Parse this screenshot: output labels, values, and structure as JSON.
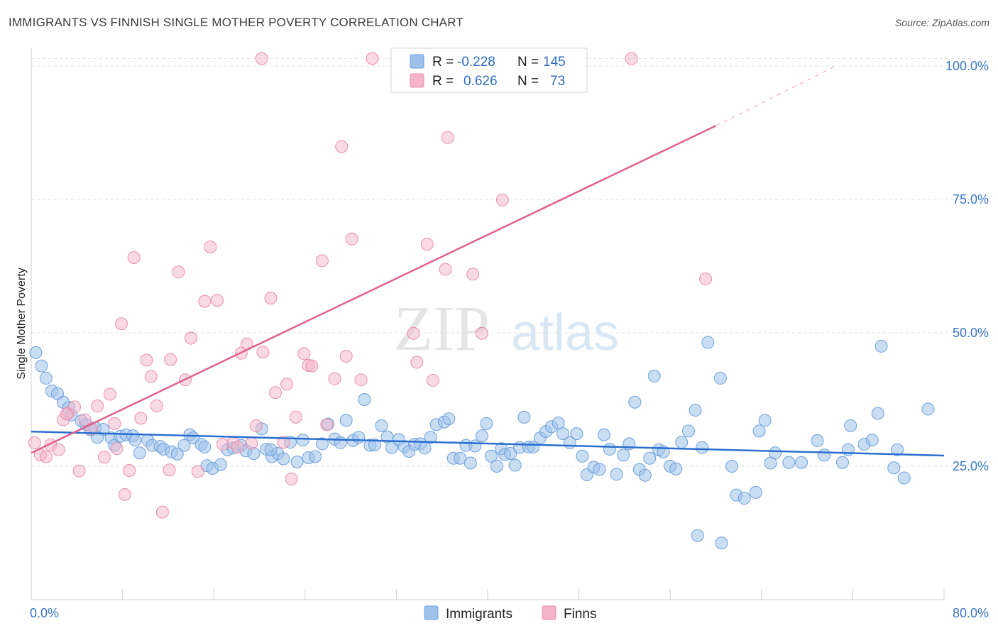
{
  "header": {
    "title": "IMMIGRANTS VS FINNISH SINGLE MOTHER POVERTY CORRELATION CHART",
    "source": "Source: ZipAtlas.com"
  },
  "watermark": {
    "zip": "ZIP",
    "atlas": "atlas"
  },
  "legend_top": {
    "rows": [
      {
        "r_label": "R =",
        "r_value": "-0.228",
        "n_label": "N =",
        "n_value": "145",
        "color": "#9dc1ea"
      },
      {
        "r_label": "R =",
        "r_value": "0.626",
        "n_label": "N =",
        "n_value": "73",
        "color": "#f3b3c8"
      }
    ]
  },
  "legend_bottom": [
    {
      "label": "Immigrants",
      "color": "#9dc1ea"
    },
    {
      "label": "Finns",
      "color": "#f3b3c8"
    }
  ],
  "chart_data": {
    "type": "scatter",
    "title": "IMMIGRANTS VS FINNISH SINGLE MOTHER POVERTY CORRELATION CHART",
    "xlabel": "",
    "ylabel": "Single Mother Poverty",
    "xlim": [
      0,
      80
    ],
    "ylim": [
      0,
      102
    ],
    "x_tick_labels": [
      {
        "value": 0,
        "label": "0.0%"
      },
      {
        "value": 80,
        "label": "80.0%"
      }
    ],
    "y_tick_labels": [
      {
        "value": 25,
        "label": "25.0%"
      },
      {
        "value": 50,
        "label": "50.0%"
      },
      {
        "value": 75,
        "label": "75.0%"
      },
      {
        "value": 100,
        "label": "100.0%"
      }
    ],
    "grid": true,
    "colors": {
      "immigrants": "#9dc1ea",
      "immigrants_edge": "#6fa0dc",
      "immigrants_line": "#2a6fd0",
      "finns": "#f3b3c8",
      "finns_edge": "#e88fae",
      "finns_line": "#e0608e"
    },
    "series": [
      {
        "name": "Immigrants",
        "trend": {
          "x": [
            0,
            80
          ],
          "y": [
            31.5,
            27
          ]
        },
        "points": [
          [
            0.4,
            46.3
          ],
          [
            0.9,
            43.8
          ],
          [
            1.3,
            41.5
          ],
          [
            1.8,
            39.1
          ],
          [
            2.3,
            38.6
          ],
          [
            2.8,
            37
          ],
          [
            3.3,
            36
          ],
          [
            3.5,
            34.6
          ],
          [
            4.4,
            33.5
          ],
          [
            4.8,
            32.8
          ],
          [
            5.2,
            31.8
          ],
          [
            5.6,
            32.2
          ],
          [
            6.3,
            31.9
          ],
          [
            7.0,
            30.3
          ],
          [
            7.3,
            28.9
          ],
          [
            7.8,
            30.6
          ],
          [
            8.3,
            30.9
          ],
          [
            8.9,
            30.7
          ],
          [
            9.5,
            27.5
          ],
          [
            10.2,
            29.9
          ],
          [
            10.6,
            28.9
          ],
          [
            11.3,
            28.7
          ],
          [
            11.6,
            28.2
          ],
          [
            12.3,
            27.7
          ],
          [
            12.8,
            27.3
          ],
          [
            13.4,
            28.9
          ],
          [
            13.9,
            30.9
          ],
          [
            14.2,
            30.3
          ],
          [
            14.9,
            29.1
          ],
          [
            15.4,
            25.1
          ],
          [
            15.9,
            24.6
          ],
          [
            16.6,
            25.3
          ],
          [
            17.2,
            28.1
          ],
          [
            17.7,
            28.4
          ],
          [
            18.4,
            28.9
          ],
          [
            18.8,
            27.9
          ],
          [
            19.5,
            27.4
          ],
          [
            20.2,
            32.0
          ],
          [
            20.6,
            28.2
          ],
          [
            21.1,
            26.8
          ],
          [
            21.6,
            27.4
          ],
          [
            22.1,
            26.4
          ],
          [
            22.7,
            29.5
          ],
          [
            23.3,
            25.8
          ],
          [
            23.8,
            29.9
          ],
          [
            24.3,
            26.6
          ],
          [
            24.9,
            26.8
          ],
          [
            25.5,
            29.2
          ],
          [
            26.0,
            32.9
          ],
          [
            26.6,
            30.1
          ],
          [
            27.1,
            29.4
          ],
          [
            27.6,
            33.6
          ],
          [
            28.2,
            29.8
          ],
          [
            28.7,
            30.4
          ],
          [
            29.2,
            37.5
          ],
          [
            29.7,
            28.9
          ],
          [
            30.1,
            29.0
          ],
          [
            30.7,
            32.6
          ],
          [
            31.2,
            30.5
          ],
          [
            31.6,
            28.5
          ],
          [
            32.2,
            30.0
          ],
          [
            32.7,
            28.7
          ],
          [
            33.1,
            27.8
          ],
          [
            33.6,
            29.1
          ],
          [
            34.1,
            29.2
          ],
          [
            34.5,
            28.4
          ],
          [
            35.0,
            30.4
          ],
          [
            35.5,
            32.8
          ],
          [
            36.2,
            33.3
          ],
          [
            36.6,
            33.9
          ],
          [
            37.0,
            26.5
          ],
          [
            37.6,
            26.5
          ],
          [
            38.1,
            28.9
          ],
          [
            38.5,
            25.6
          ],
          [
            38.9,
            28.8
          ],
          [
            39.5,
            30.7
          ],
          [
            39.9,
            33.0
          ],
          [
            40.3,
            26.9
          ],
          [
            40.8,
            25.0
          ],
          [
            41.2,
            28.3
          ],
          [
            41.5,
            27.2
          ],
          [
            42.0,
            27.4
          ],
          [
            42.4,
            25.2
          ],
          [
            42.8,
            28.5
          ],
          [
            43.2,
            34.2
          ],
          [
            43.6,
            28.6
          ],
          [
            44.0,
            28.6
          ],
          [
            44.6,
            30.3
          ],
          [
            45.1,
            31.5
          ],
          [
            45.6,
            32.4
          ],
          [
            46.2,
            33.1
          ],
          [
            46.6,
            31.1
          ],
          [
            47.2,
            29.4
          ],
          [
            47.8,
            31.1
          ],
          [
            48.3,
            26.9
          ],
          [
            48.7,
            23.4
          ],
          [
            49.3,
            24.8
          ],
          [
            49.8,
            24.4
          ],
          [
            50.2,
            30.9
          ],
          [
            50.7,
            28.2
          ],
          [
            51.3,
            23.5
          ],
          [
            51.9,
            27.1
          ],
          [
            52.4,
            29.2
          ],
          [
            52.9,
            37.0
          ],
          [
            53.3,
            24.4
          ],
          [
            53.8,
            23.3
          ],
          [
            54.2,
            26.5
          ],
          [
            54.6,
            41.9
          ],
          [
            55.0,
            28.1
          ],
          [
            55.4,
            27.7
          ],
          [
            56.0,
            25.0
          ],
          [
            56.5,
            24.5
          ],
          [
            57.0,
            29.5
          ],
          [
            57.6,
            31.6
          ],
          [
            58.2,
            35.5
          ],
          [
            58.8,
            28.5
          ],
          [
            59.3,
            48.2
          ],
          [
            60.4,
            41.5
          ],
          [
            61.4,
            25.0
          ],
          [
            61.8,
            19.6
          ],
          [
            62.5,
            19.0
          ],
          [
            63.5,
            20.1
          ],
          [
            63.8,
            31.6
          ],
          [
            64.3,
            33.6
          ],
          [
            64.8,
            25.6
          ],
          [
            65.2,
            27.5
          ],
          [
            66.4,
            25.7
          ],
          [
            67.5,
            25.7
          ],
          [
            68.9,
            29.8
          ],
          [
            69.5,
            27.1
          ],
          [
            71.1,
            25.7
          ],
          [
            71.6,
            28.1
          ],
          [
            71.8,
            32.6
          ],
          [
            73.0,
            29.1
          ],
          [
            73.7,
            29.9
          ],
          [
            74.2,
            34.9
          ],
          [
            74.5,
            47.5
          ],
          [
            75.6,
            24.7
          ],
          [
            75.9,
            28.1
          ],
          [
            76.5,
            22.8
          ],
          [
            78.6,
            35.7
          ],
          [
            58.4,
            12.0
          ],
          [
            60.5,
            10.6
          ],
          [
            21.0,
            28.1
          ],
          [
            15.2,
            28.6
          ],
          [
            9.1,
            29.9
          ],
          [
            5.8,
            30.4
          ]
        ]
      },
      {
        "name": "Finns",
        "trend": {
          "x": [
            0,
            60
          ],
          "y": [
            27.5,
            88.8
          ]
        },
        "trend_dashed": {
          "x": [
            60,
            70.5
          ],
          "y": [
            88.8,
            100
          ]
        },
        "points": [
          [
            0.3,
            29.4
          ],
          [
            0.8,
            27.1
          ],
          [
            1.3,
            26.8
          ],
          [
            1.7,
            29.0
          ],
          [
            2.4,
            28.1
          ],
          [
            2.8,
            33.7
          ],
          [
            3.2,
            34.9
          ],
          [
            3.8,
            36.1
          ],
          [
            4.2,
            24.1
          ],
          [
            4.7,
            33.7
          ],
          [
            5.3,
            32.0
          ],
          [
            5.8,
            36.3
          ],
          [
            6.4,
            26.7
          ],
          [
            6.9,
            38.5
          ],
          [
            7.5,
            28.3
          ],
          [
            7.9,
            51.7
          ],
          [
            8.2,
            19.7
          ],
          [
            8.6,
            24.2
          ],
          [
            9.0,
            64.1
          ],
          [
            9.6,
            34.0
          ],
          [
            10.1,
            44.9
          ],
          [
            10.5,
            41.8
          ],
          [
            11.0,
            36.3
          ],
          [
            11.5,
            16.4
          ],
          [
            12.2,
            45.0
          ],
          [
            12.9,
            61.4
          ],
          [
            13.5,
            41.2
          ],
          [
            14.0,
            49.0
          ],
          [
            14.6,
            24.0
          ],
          [
            15.2,
            55.9
          ],
          [
            15.7,
            66.1
          ],
          [
            16.3,
            56.1
          ],
          [
            16.8,
            29.1
          ],
          [
            17.7,
            29.4
          ],
          [
            18.1,
            28.6
          ],
          [
            18.4,
            46.2
          ],
          [
            18.9,
            47.9
          ],
          [
            19.3,
            29.3
          ],
          [
            19.7,
            32.6
          ],
          [
            20.3,
            46.4
          ],
          [
            21.0,
            56.5
          ],
          [
            21.4,
            38.8
          ],
          [
            22.1,
            29.5
          ],
          [
            22.4,
            40.4
          ],
          [
            22.8,
            22.6
          ],
          [
            23.2,
            34.2
          ],
          [
            23.9,
            46.1
          ],
          [
            24.3,
            43.9
          ],
          [
            24.6,
            43.8
          ],
          [
            25.5,
            63.5
          ],
          [
            25.9,
            32.8
          ],
          [
            26.6,
            41.4
          ],
          [
            27.2,
            84.9
          ],
          [
            27.6,
            45.6
          ],
          [
            28.1,
            67.6
          ],
          [
            28.9,
            41.2
          ],
          [
            29.9,
            101.4
          ],
          [
            32.3,
            101.4
          ],
          [
            33.5,
            49.9
          ],
          [
            33.8,
            44.5
          ],
          [
            34.7,
            66.6
          ],
          [
            35.2,
            41.1
          ],
          [
            36.3,
            61.9
          ],
          [
            36.5,
            86.6
          ],
          [
            38.7,
            61.0
          ],
          [
            39.5,
            49.9
          ],
          [
            41.3,
            74.9
          ],
          [
            52.6,
            101.4
          ],
          [
            59.1,
            60.1
          ],
          [
            20.2,
            101.4
          ],
          [
            12.1,
            24.3
          ],
          [
            3.1,
            34.8
          ],
          [
            7.3,
            33.0
          ]
        ]
      }
    ]
  }
}
